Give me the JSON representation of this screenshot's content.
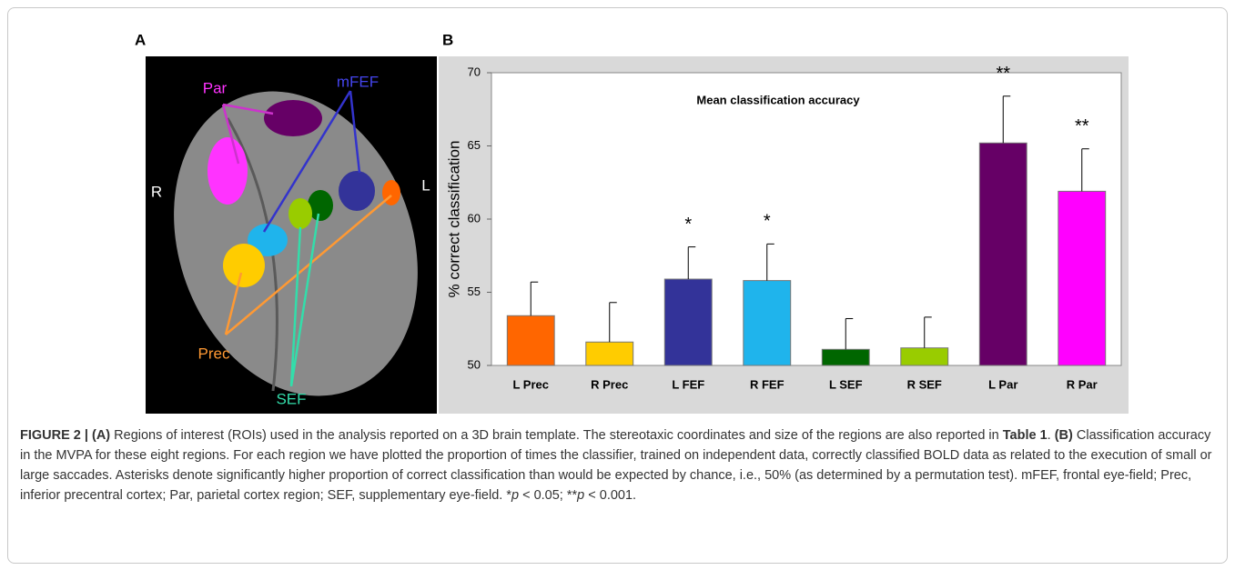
{
  "panel_labels": [
    "A",
    "B"
  ],
  "panel_a": {
    "labels": {
      "par": "Par",
      "mfef": "mFEF",
      "right": "R",
      "left": "L",
      "prec": "Prec",
      "sef": "SEF"
    }
  },
  "chart_data": {
    "type": "bar",
    "title": "Mean classification accuracy",
    "y_label": "% correct classification",
    "categories": [
      "L Prec",
      "R Prec",
      "L FEF",
      "R FEF",
      "L SEF",
      "R SEF",
      "L Par",
      "R Par"
    ],
    "values": [
      53.4,
      51.6,
      55.9,
      55.8,
      51.1,
      51.2,
      65.2,
      61.9
    ],
    "errors": [
      2.3,
      2.7,
      2.2,
      2.5,
      2.1,
      2.1,
      3.2,
      2.9
    ],
    "significance": [
      null,
      null,
      "*",
      "*",
      null,
      null,
      "**",
      "**"
    ],
    "colors": [
      "#ff6600",
      "#ffcc00",
      "#333399",
      "#1fb4ec",
      "#006600",
      "#99cc00",
      "#660066",
      "#ff00ff"
    ],
    "ylim": [
      50,
      70
    ],
    "yticks": [
      50,
      55,
      60,
      65,
      70
    ]
  },
  "caption": {
    "segments": [
      {
        "text": "FIGURE 2 | (A)",
        "style": "bold"
      },
      {
        "text": " Regions of interest (ROIs) used in the analysis reported on a 3D brain template. The stereotaxic coordinates and size of the regions are also reported in ",
        "style": "normal"
      },
      {
        "text": "Table 1",
        "style": "bold"
      },
      {
        "text": ". ",
        "style": "normal"
      },
      {
        "text": "(B)",
        "style": "bold"
      },
      {
        "text": " Classification accuracy in the MVPA for these eight regions. For each region we have plotted the proportion of times the classifier, trained on independent data, correctly classified BOLD data as related to the execution of small or large saccades. Asterisks denote significantly higher proportion of correct classification than would be expected by chance, i.e., 50% (as determined by a permutation test). mFEF, frontal eye-field; Prec, inferior precentral cortex; Par, parietal cortex region; SEF, supplementary eye-field. *",
        "style": "normal"
      },
      {
        "text": "p",
        "style": "italic"
      },
      {
        "text": " < 0.05; **",
        "style": "normal"
      },
      {
        "text": "p",
        "style": "italic"
      },
      {
        "text": " < 0.001.",
        "style": "normal"
      }
    ]
  }
}
